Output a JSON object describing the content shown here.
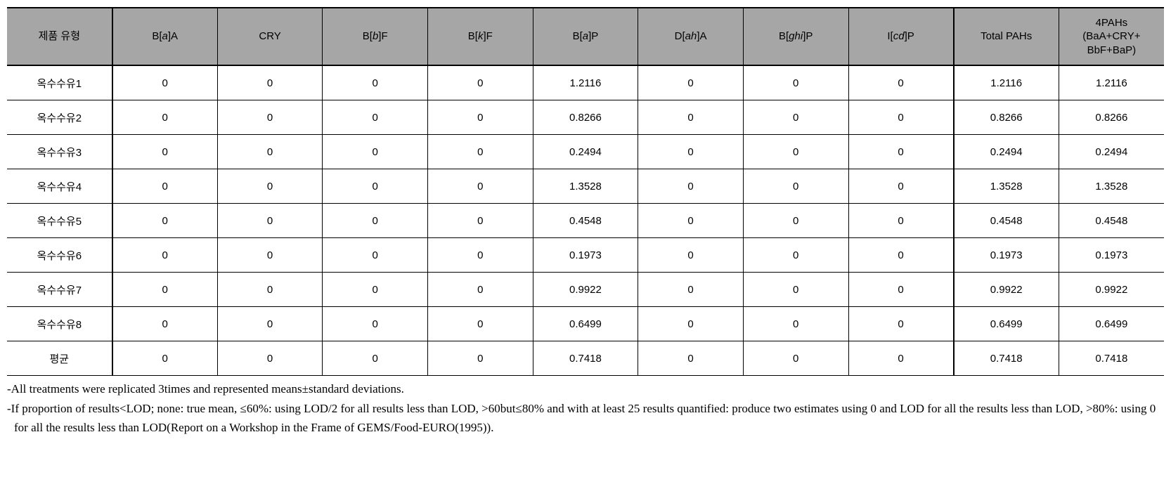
{
  "table": {
    "header_bg": "#a6a6a6",
    "border_color": "#000000",
    "font_size_pt": 11,
    "columns": [
      {
        "key": "type",
        "label_html": "제품 유형"
      },
      {
        "key": "baa",
        "label_html": "B[<span class=\"ital\">a</span>]A"
      },
      {
        "key": "cry",
        "label_html": "CRY"
      },
      {
        "key": "bbf",
        "label_html": "B[<span class=\"ital\">b</span>]F"
      },
      {
        "key": "bkf",
        "label_html": "B[<span class=\"ital\">k</span>]F"
      },
      {
        "key": "bap",
        "label_html": "B[<span class=\"ital\">a</span>]P"
      },
      {
        "key": "daha",
        "label_html": "D[<span class=\"ital\">ah</span>]A"
      },
      {
        "key": "bghip",
        "label_html": "B[<span class=\"ital\">ghi</span>]P"
      },
      {
        "key": "icdp",
        "label_html": "I[<span class=\"ital\">cd</span>]P"
      },
      {
        "key": "total",
        "label_html": "Total PAHs"
      },
      {
        "key": "pah4",
        "label_html": "4PAHs<br>(BaA+CRY+<br>BbF+BaP)"
      }
    ],
    "rows": [
      [
        "옥수수유1",
        "0",
        "0",
        "0",
        "0",
        "1.2116",
        "0",
        "0",
        "0",
        "1.2116",
        "1.2116"
      ],
      [
        "옥수수유2",
        "0",
        "0",
        "0",
        "0",
        "0.8266",
        "0",
        "0",
        "0",
        "0.8266",
        "0.8266"
      ],
      [
        "옥수수유3",
        "0",
        "0",
        "0",
        "0",
        "0.2494",
        "0",
        "0",
        "0",
        "0.2494",
        "0.2494"
      ],
      [
        "옥수수유4",
        "0",
        "0",
        "0",
        "0",
        "1.3528",
        "0",
        "0",
        "0",
        "1.3528",
        "1.3528"
      ],
      [
        "옥수수유5",
        "0",
        "0",
        "0",
        "0",
        "0.4548",
        "0",
        "0",
        "0",
        "0.4548",
        "0.4548"
      ],
      [
        "옥수수유6",
        "0",
        "0",
        "0",
        "0",
        "0.1973",
        "0",
        "0",
        "0",
        "0.1973",
        "0.1973"
      ],
      [
        "옥수수유7",
        "0",
        "0",
        "0",
        "0",
        "0.9922",
        "0",
        "0",
        "0",
        "0.9922",
        "0.9922"
      ],
      [
        "옥수수유8",
        "0",
        "0",
        "0",
        "0",
        "0.6499",
        "0",
        "0",
        "0",
        "0.6499",
        "0.6499"
      ],
      [
        "평균",
        "0",
        "0",
        "0",
        "0",
        "0.7418",
        "0",
        "0",
        "0",
        "0.7418",
        "0.7418"
      ]
    ]
  },
  "footnotes": [
    "-All treatments were replicated 3times and represented means±standard deviations.",
    "-If proportion of results<LOD; none: true mean, ≤60%: using LOD/2 for all results less than LOD, >60but≤80% and with at least 25 results quantified: produce two estimates using 0 and LOD for all the results less than LOD, >80%: using 0 for all the results less than LOD(Report on a Workshop in the Frame of GEMS/Food-EURO(1995))."
  ]
}
